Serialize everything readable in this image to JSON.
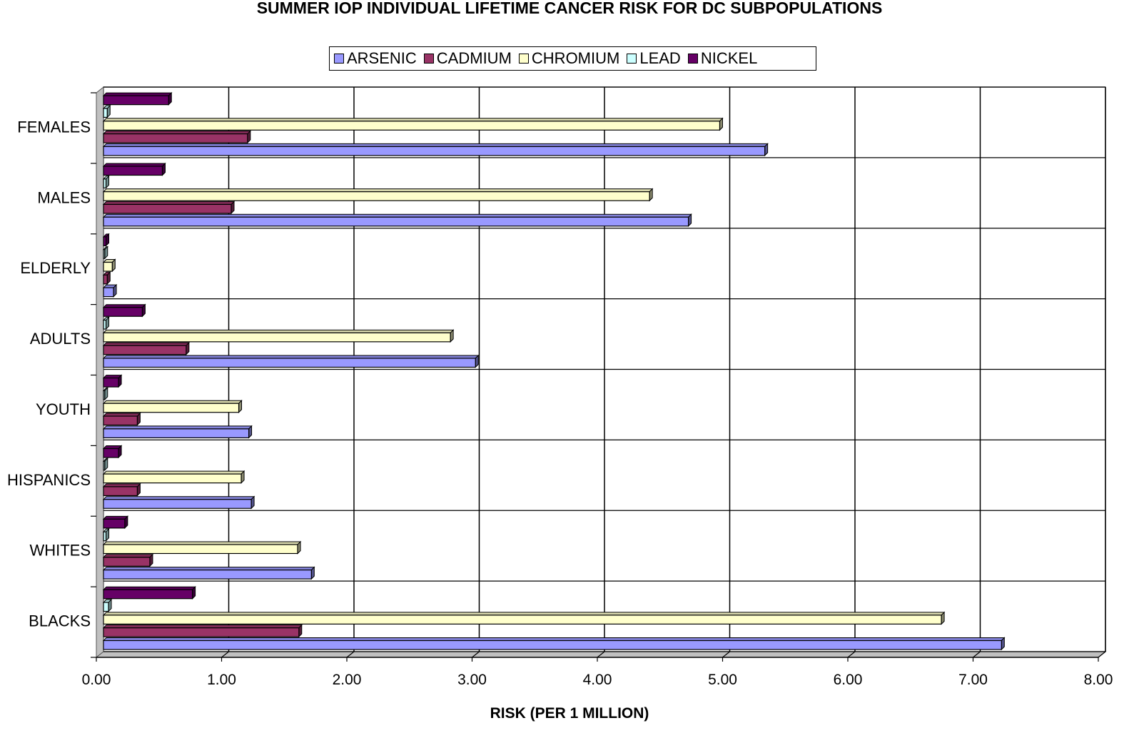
{
  "chart_data": {
    "type": "bar",
    "orientation": "horizontal",
    "title": "SUMMER IOP INDIVIDUAL LIFETIME CANCER RISK FOR DC SUBPOPULATIONS",
    "xlabel": "RISK (PER 1 MILLION)",
    "ylabel": "",
    "xlim": [
      0,
      8
    ],
    "xticks": [
      "0.00",
      "1.00",
      "2.00",
      "3.00",
      "4.00",
      "5.00",
      "6.00",
      "7.00",
      "8.00"
    ],
    "categories": [
      "FEMALES",
      "MALES",
      "ELDERLY",
      "ADULTS",
      "YOUTH",
      "HISPANICS",
      "WHITES",
      "BLACKS"
    ],
    "series": [
      {
        "name": "ARSENIC",
        "color": "#9999ff",
        "values": [
          5.28,
          4.67,
          0.08,
          2.97,
          1.16,
          1.18,
          1.66,
          7.17
        ]
      },
      {
        "name": "CADMIUM",
        "color": "#993366",
        "values": [
          1.15,
          1.02,
          0.03,
          0.66,
          0.27,
          0.27,
          0.37,
          1.56
        ]
      },
      {
        "name": "CHROMIUM",
        "color": "#ffffcc",
        "values": [
          4.92,
          4.36,
          0.07,
          2.77,
          1.08,
          1.1,
          1.55,
          6.69
        ]
      },
      {
        "name": "LEAD",
        "color": "#ccffff",
        "values": [
          0.03,
          0.02,
          0.01,
          0.02,
          0.01,
          0.01,
          0.02,
          0.04
        ]
      },
      {
        "name": "NICKEL",
        "color": "#660066",
        "values": [
          0.52,
          0.47,
          0.02,
          0.31,
          0.12,
          0.12,
          0.17,
          0.71
        ]
      }
    ],
    "grid": true,
    "legend_position": "top"
  }
}
